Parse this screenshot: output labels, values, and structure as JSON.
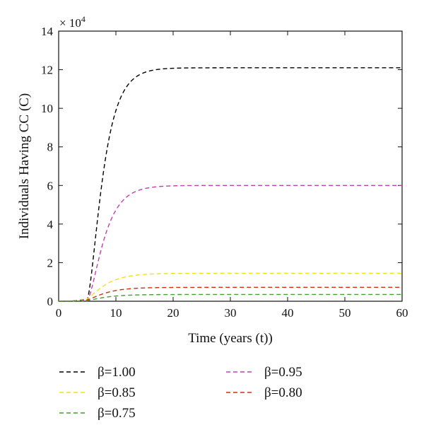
{
  "chart_data": {
    "type": "line",
    "xlabel": "Time (years (t))",
    "ylabel": "Individuals Having CC (C)",
    "y_multiplier": "× 10",
    "y_multiplier_exp": "4",
    "xlim": [
      0,
      60
    ],
    "ylim": [
      0,
      14
    ],
    "xticks": [
      0,
      10,
      20,
      30,
      40,
      50,
      60
    ],
    "yticks": [
      0,
      2,
      4,
      6,
      8,
      10,
      12,
      14
    ],
    "grid": false,
    "legend_position": "bottom",
    "series": [
      {
        "name": "β=1.00",
        "color": "#000000",
        "plateau": 12.1,
        "rise_start": 4.8,
        "rate": 0.45
      },
      {
        "name": "β=0.95",
        "color": "#c040b0",
        "plateau": 6.0,
        "rise_start": 4.8,
        "rate": 0.42
      },
      {
        "name": "β=0.85",
        "color": "#f0e020",
        "plateau": 1.45,
        "rise_start": 4.0,
        "rate": 0.35
      },
      {
        "name": "β=0.80",
        "color": "#d03010",
        "plateau": 0.72,
        "rise_start": 4.0,
        "rate": 0.35
      },
      {
        "name": "β=0.75",
        "color": "#40a030",
        "plateau": 0.35,
        "rise_start": 4.0,
        "rate": 0.35
      }
    ]
  }
}
